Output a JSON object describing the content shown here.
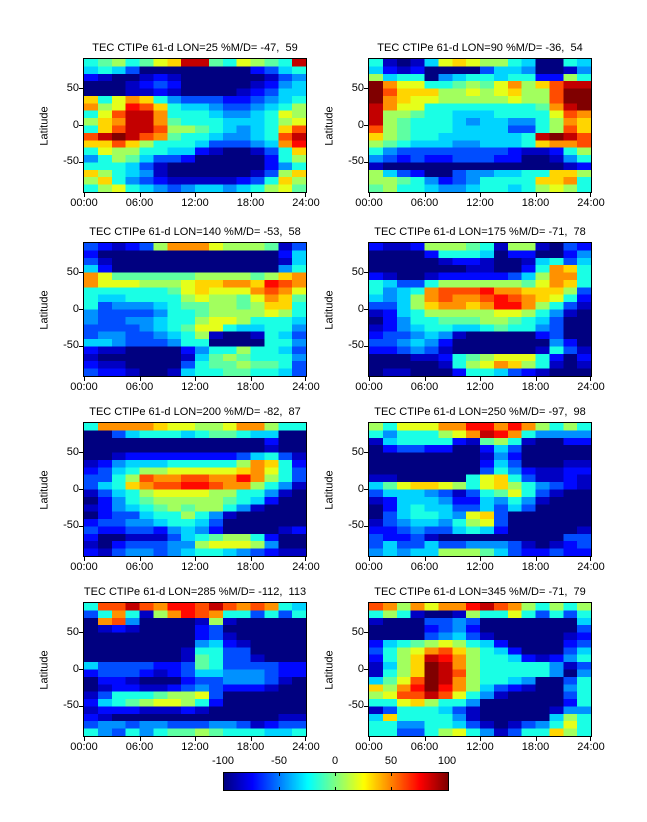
{
  "figure": {
    "background": "#ffffff",
    "axis_color": "#000000",
    "y_axis_label": "Latitude",
    "y_ticks": [
      {
        "label": "50",
        "lat": 50
      },
      {
        "label": "0",
        "lat": 0
      },
      {
        "label": "-50",
        "lat": -50
      }
    ],
    "x_ticks": [
      {
        "label": "00:00",
        "hour": 0
      },
      {
        "label": "06:00",
        "hour": 6
      },
      {
        "label": "12:00",
        "hour": 12
      },
      {
        "label": "18:00",
        "hour": 18
      },
      {
        "label": "24:00",
        "hour": 24
      }
    ]
  },
  "colorbar": {
    "min": -100,
    "max": 100,
    "colormap": "jet",
    "tick_labels": [
      "-100",
      "-50",
      "0",
      "50",
      "100"
    ]
  },
  "chart_data": [
    {
      "type": "heatmap",
      "title": "TEC CTIPe 61-d LON=25 %M/D= -47,  59",
      "lon": 25,
      "pct_min": -47,
      "pct_max": 59,
      "x_range_hours": [
        0,
        24
      ],
      "y_range_lat": [
        90,
        -90
      ],
      "encoding": "each char 0-f maps linearly to -100..+100; rows top lat 90 to bottom lat -90",
      "grid": [
        "678679aee769876e",
        "5653000000002356",
        "2100121000000134",
        "0001232000001245",
        "0001121000012355",
        "a69ba64333223456",
        "b89dca6554334568",
        "69ceeb6665445698",
        "8abeeb7666555689",
        "6aceec88765456ac",
        "cefecb76654456ce",
        "aaca8666533345bd",
        "698866552100136a",
        "4687533200000268",
        "6665310000000246",
        "a86541000000138a",
        "8a643211111236a8",
        "6896543455456897"
      ]
    },
    {
      "type": "heatmap",
      "title": "TEC CTIPe 61-d LON=90 %M/D= -36,  54",
      "lon": 90,
      "pct_min": -36,
      "pct_max": 54,
      "x_range_hours": [
        0,
        24
      ],
      "y_range_lat": [
        90,
        -90
      ],
      "encoding": "each char 0-f maps linearly to -100..+100; rows top lat 90 to bottom lat -90",
      "grid": [
        "610159a988650065",
        "5212000035540014",
        "8566045665662286",
        "fb99667879b8acee",
        "fcaaa88989a88cff",
        "fba9988888988cff",
        "eb99666666667bef",
        "e8876655566669cb",
        "e8766654554468ba",
        "c8766655553368ca",
        "a87665555556efec",
        "876555445556abbc",
        "6433333333211268",
        "4323223332200146",
        "1000000000000012",
        "8532003445566aa8",
        "887642346666aab6",
        "7866544566568986"
      ]
    },
    {
      "type": "heatmap",
      "title": "TEC CTIPe 61-d LON=140 %M/D= -53,  58",
      "lon": 140,
      "pct_min": -53,
      "pct_max": 58,
      "x_range_hours": [
        0,
        24
      ],
      "y_range_lat": [
        90,
        -90
      ],
      "encoding": "each char 0-f maps linearly to -100..+100; rows top lat 90 to bottom lat -90",
      "grid": [
        "321238bbb9888713",
        "2000000000000025",
        "3100000000000015",
        "5200000000000046",
        "b9777777888878ab",
        "b9998889aabbadcb",
        "66666679a999bcb9",
        "6556666898879ba7",
        "6344456778878aa6",
        "4333346678888986",
        "4334456689986665",
        "3333456799655664",
        "3443345681001653",
        "5543334660000664",
        "2110000246686653",
        "1000000157876664",
        "2110000367787763",
        "3221001566776653"
      ]
    },
    {
      "type": "heatmap",
      "title": "TEC CTIPe 61-d LON=175 %M/D= -71,  78",
      "lon": 175,
      "pct_min": -71,
      "pct_max": 78,
      "x_range_hours": [
        0,
        24
      ],
      "y_range_lat": [
        90,
        -90
      ],
      "encoding": "each char 0-f maps linearly to -100..+100; rows top lat 90 to bottom lat -90",
      "grid": [
        "2112888761881032",
        "0000266650220024",
        "0000012210015635",
        "0000000110026ba6",
        "2100122222358bb6",
        "6533688888879ba6",
        "6456bcccdbbaaa83",
        "5458bcbbcdcba962",
        "3358abbabddb8631",
        "1256888889986410",
        "0246677788765300",
        "1245665567664300",
        "2334541000002300",
        "3345420000000420",
        "2234310000001631",
        "0001126789996202",
        "000001689ba86101",
        "0110002665321000"
      ]
    },
    {
      "type": "heatmap",
      "title": "TEC CTIPe 61-d LON=200 %M/D= -82,  87",
      "lon": 200,
      "pct_min": -82,
      "pct_max": 87,
      "x_range_hours": [
        0,
        24
      ],
      "y_range_lat": [
        90,
        -90
      ],
      "encoding": "each char 0-f maps linearly to -100..+100; rows top lat 90 to bottom lat -90",
      "grid": [
        "6bbbba99889bb866",
        "0035666567765500",
        "0000000000000200",
        "0000000000000100",
        "0012222222235631",
        "124555666668ba62",
        "23568899999ab963",
        "3368cbbccbbdb863",
        "356abccddcbb8641",
        "1356899998866410",
        "0246788888765200",
        "1245678788641000",
        "0233566864100000",
        "2334456653000000",
        "3223324542000012",
        "2001113567886200",
        "1023334489998400",
        "2134434566543211"
      ]
    },
    {
      "type": "heatmap",
      "title": "TEC CTIPe 61-d LON=250 %M/D= -97,  98",
      "lon": 250,
      "pct_min": -97,
      "pct_max": 98,
      "x_range_hours": [
        0,
        24
      ],
      "y_range_lat": [
        90,
        -90
      ],
      "encoding": "each char 0-f maps linearly to -100..+100; rows top lat 90 to bottom lat -90",
      "grid": [
        "86999bbddbdb8686",
        "6466689bedb64444",
        "1566662178610022",
        "0233220025300000",
        "0000000014200000",
        "0000000025300011",
        "0000000036421122",
        "110000069a631121",
        "579aa9869a864321",
        "3555431367963100",
        "1255542254641000",
        "0256553353530000",
        "03566549a3000000",
        "1345546893000000",
        "2234335652000001",
        "3223100000000033",
        "3533533444310123",
        "4545588875322322"
      ]
    },
    {
      "type": "heatmap",
      "title": "TEC CTIPe 61-d LON=285 %M/D= -112,  113",
      "lon": 285,
      "pct_min": -112,
      "pct_max": 113,
      "x_range_hours": [
        0,
        24
      ],
      "y_range_lat": [
        90,
        -90
      ],
      "encoding": "each char 0-f maps linearly to -100..+100; rows top lat 90 to bottom lat -90",
      "grid": [
        "6ccecbddcecbcb65",
        "36b618bdcb663636",
        "0bc4000018100000",
        "0121000023000000",
        "0000000023100000",
        "0000000045210000",
        "0000000166330000",
        "0000000176331000",
        "5333322376333322",
        "2333212355444322",
        "0221000233444310",
        "0122112343222100",
        "1366678893000000",
        "2567899862000000",
        "1222111210000000",
        "2100000000000011",
        "3443443334431233",
        "6436467787666556"
      ]
    },
    {
      "type": "heatmap",
      "title": "TEC CTIPe 61-d LON=345 %M/D= -71,  79",
      "lon": 345,
      "pct_min": -71,
      "pct_max": 79,
      "x_range_hours": [
        0,
        24
      ],
      "y_range_lat": [
        90,
        -90
      ],
      "encoding": "each char 0-f maps linearly to -100..+100; rows top lat 90 to bottom lat -90",
      "grid": [
        "cb8b9bbdecb86868",
        "6861001866963636",
        "1000334300000005",
        "0000234200000003",
        "0000345310000012",
        "2567898652000023",
        "3689bca865200035",
        "268aedb866521246",
        "158afeb866666413",
        "168afec866666404",
        "579cfeb866540036",
        "a8bdfdb853210046",
        "89ccec9641000036",
        "669a866400000026",
        "1366653100000144",
        "5a66664100000586",
        "6644665310134696",
        "6633689641366a86"
      ]
    }
  ]
}
